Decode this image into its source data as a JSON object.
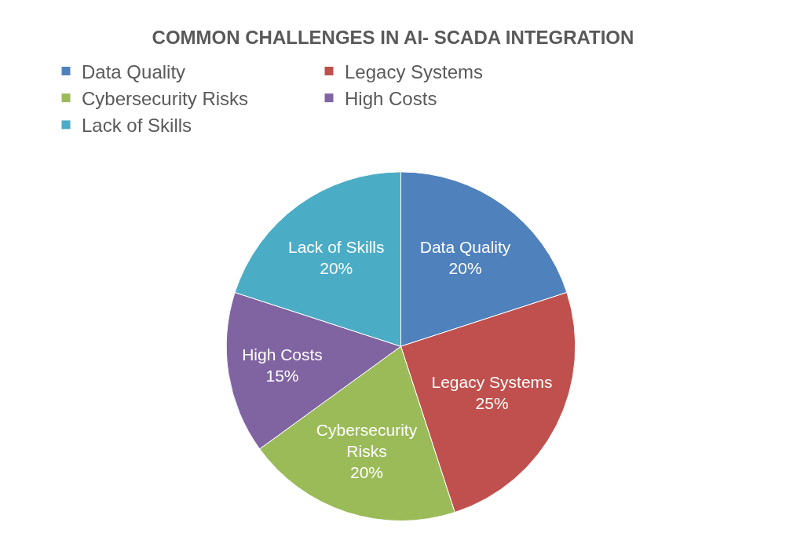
{
  "chart_data": {
    "type": "pie",
    "title": "COMMON CHALLENGES IN AI- SCADA INTEGRATION",
    "categories": [
      "Data Quality",
      "Legacy Systems",
      "Cybersecurity Risks",
      "High Costs",
      "Lack of Skills"
    ],
    "values": [
      20,
      25,
      20,
      15,
      20
    ],
    "value_labels": [
      "20%",
      "25%",
      "20%",
      "15%",
      "20%"
    ],
    "colors": [
      "#4f81bd",
      "#c0504d",
      "#9bbb59",
      "#8064a2",
      "#4bacc6"
    ],
    "legend": "top"
  }
}
